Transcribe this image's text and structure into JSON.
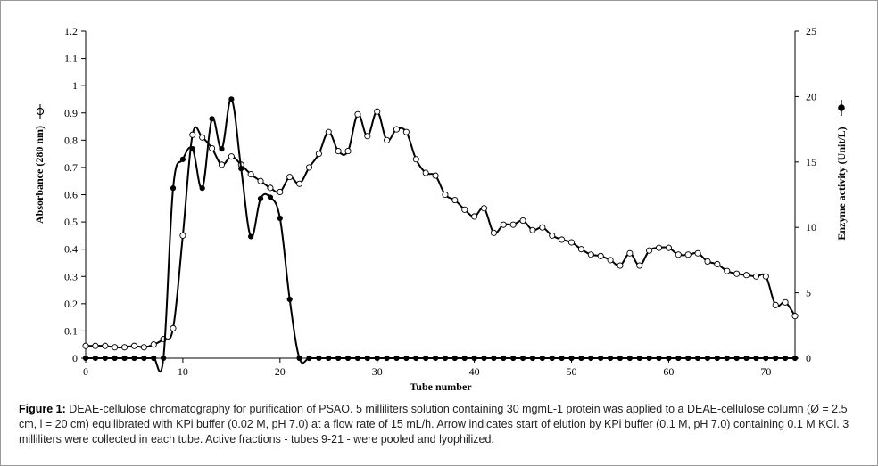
{
  "chart_data": {
    "type": "line",
    "xlabel": "Tube number",
    "ylabel_left": "Absorbance  (280 nm)",
    "ylabel_right": "Enzyme activity (Unit/L)",
    "xlim": [
      0,
      73
    ],
    "xticks": [
      0,
      10,
      20,
      30,
      40,
      50,
      60,
      70
    ],
    "ylim_left": [
      0,
      1.2
    ],
    "yticks_left": [
      "0",
      "0.1",
      "0.2",
      "0.3",
      "0.4",
      "0.5",
      "0.6",
      "0.7",
      "0.8",
      "0.9",
      "1",
      "1.1",
      "1.2"
    ],
    "ylim_right": [
      0,
      25
    ],
    "yticks_right": [
      "0",
      "5",
      "10",
      "15",
      "20",
      "25"
    ],
    "grid": false,
    "series": [
      {
        "axis": "left",
        "marker": "open-circle",
        "x": [
          0,
          1,
          2,
          3,
          4,
          5,
          6,
          7,
          8,
          9,
          10,
          11,
          12,
          13,
          14,
          15,
          16,
          17,
          18,
          19,
          20,
          21,
          22,
          23,
          24,
          25,
          26,
          27,
          28,
          29,
          30,
          31,
          32,
          33,
          34,
          35,
          36,
          37,
          38,
          39,
          40,
          41,
          42,
          43,
          44,
          45,
          46,
          47,
          48,
          49,
          50,
          51,
          52,
          53,
          54,
          55,
          56,
          57,
          58,
          59,
          60,
          61,
          62,
          63,
          64,
          65,
          66,
          67,
          68,
          69,
          70,
          71,
          72,
          73
        ],
        "y": [
          0.045,
          0.045,
          0.045,
          0.04,
          0.04,
          0.045,
          0.04,
          0.05,
          0.07,
          0.11,
          0.45,
          0.82,
          0.81,
          0.77,
          0.71,
          0.74,
          0.71,
          0.675,
          0.65,
          0.625,
          0.61,
          0.665,
          0.64,
          0.7,
          0.75,
          0.83,
          0.76,
          0.76,
          0.895,
          0.815,
          0.905,
          0.8,
          0.84,
          0.83,
          0.73,
          0.68,
          0.67,
          0.6,
          0.58,
          0.545,
          0.52,
          0.55,
          0.46,
          0.49,
          0.49,
          0.505,
          0.47,
          0.48,
          0.45,
          0.435,
          0.425,
          0.4,
          0.38,
          0.375,
          0.36,
          0.34,
          0.385,
          0.34,
          0.395,
          0.405,
          0.405,
          0.38,
          0.38,
          0.385,
          0.355,
          0.345,
          0.32,
          0.31,
          0.305,
          0.3,
          0.3,
          0.195,
          0.205,
          0.155
        ]
      },
      {
        "axis": "right",
        "marker": "filled-circle",
        "x": [
          0,
          1,
          2,
          3,
          4,
          5,
          6,
          7,
          8,
          9,
          10,
          11,
          12,
          13,
          14,
          15,
          16,
          17,
          18,
          19,
          20,
          21,
          22,
          23,
          24,
          25,
          26,
          27,
          28,
          29,
          30,
          31,
          32,
          33,
          34,
          35,
          36,
          37,
          38,
          39,
          40,
          41,
          42,
          43,
          44,
          45,
          46,
          47,
          48,
          49,
          50,
          51,
          52,
          53,
          54,
          55,
          56,
          57,
          58,
          59,
          60,
          61,
          62,
          63,
          64,
          65,
          66,
          67,
          68,
          69,
          70,
          71,
          72,
          73
        ],
        "y": [
          0,
          0,
          0,
          0,
          0,
          0,
          0,
          0,
          0,
          13,
          15.2,
          16,
          13,
          18.3,
          16,
          19.8,
          14.5,
          9.3,
          12.2,
          12.3,
          10.7,
          4.5,
          0,
          0,
          0,
          0,
          0,
          0,
          0,
          0,
          0,
          0,
          0,
          0,
          0,
          0,
          0,
          0,
          0,
          0,
          0,
          0,
          0,
          0,
          0,
          0,
          0,
          0,
          0,
          0,
          0,
          0,
          0,
          0,
          0,
          0,
          0,
          0,
          0,
          0,
          0,
          0,
          0,
          0,
          0,
          0,
          0,
          0,
          0,
          0,
          0,
          0,
          0,
          0
        ]
      }
    ]
  },
  "caption": {
    "label": "Figure 1:",
    "text": " DEAE-cellulose chromatography for purification of PSAO. 5 milliliters solution containing 30 mgmL-1 protein was applied to a DEAE-cellulose column (Ø = 2.5 cm, l = 20 cm) equilibrated with KPi buffer (0.02 M, pH 7.0) at a flow rate of 15 mL/h. Arrow indicates start of elution by KPi buffer (0.1 M, pH 7.0) containing 0.1 M KCl. 3 milliliters were collected in each tube. Active fractions - tubes 9-21 - were pooled and lyophilized."
  }
}
